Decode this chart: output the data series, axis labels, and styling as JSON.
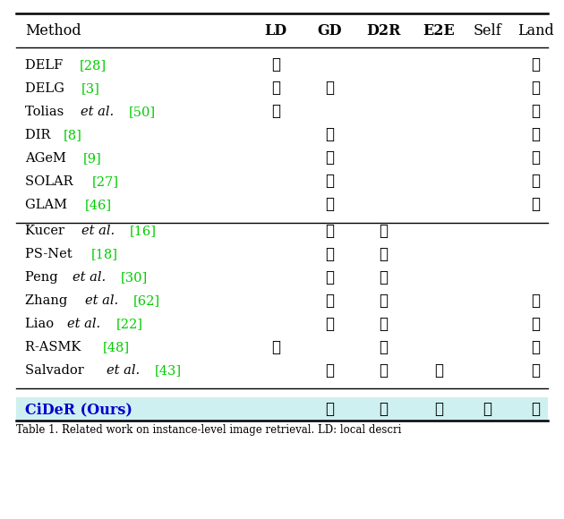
{
  "title": "Table 1. Related work on instance-level image retrieval. LD: local descri",
  "header_method": "Method",
  "columns": [
    "LD",
    "GD",
    "D2R",
    "E2E",
    "Self",
    "Land"
  ],
  "groups": [
    {
      "rows": [
        {
          "method": "DELF [28]",
          "checks": [
            1,
            0,
            0,
            0,
            0,
            1
          ]
        },
        {
          "method": "DELG [3]",
          "checks": [
            1,
            1,
            0,
            0,
            0,
            1
          ]
        },
        {
          "method": "Tolias et al. [50]",
          "checks": [
            1,
            0,
            0,
            0,
            0,
            1
          ]
        },
        {
          "method": "DIR [8]",
          "checks": [
            0,
            1,
            0,
            0,
            0,
            1
          ]
        },
        {
          "method": "AGeM [9]",
          "checks": [
            0,
            1,
            0,
            0,
            0,
            1
          ]
        },
        {
          "method": "SOLAR [27]",
          "checks": [
            0,
            1,
            0,
            0,
            0,
            1
          ]
        },
        {
          "method": "GLAM [46]",
          "checks": [
            0,
            1,
            0,
            0,
            0,
            1
          ]
        }
      ]
    },
    {
      "rows": [
        {
          "method": "Kucer et al. [16]",
          "checks": [
            0,
            1,
            1,
            0,
            0,
            0
          ]
        },
        {
          "method": "PS-Net [18]",
          "checks": [
            0,
            1,
            1,
            0,
            0,
            0
          ]
        },
        {
          "method": "Peng et al. [30]",
          "checks": [
            0,
            1,
            1,
            0,
            0,
            0
          ]
        },
        {
          "method": "Zhang et al. [62]",
          "checks": [
            0,
            1,
            1,
            0,
            0,
            1
          ]
        },
        {
          "method": "Liao et al. [22]",
          "checks": [
            0,
            1,
            1,
            0,
            0,
            1
          ]
        },
        {
          "method": "R-ASMK [48]",
          "checks": [
            1,
            0,
            1,
            0,
            0,
            1
          ]
        },
        {
          "method": "Salvador et al. [43]",
          "checks": [
            0,
            1,
            1,
            1,
            0,
            1
          ]
        }
      ]
    }
  ],
  "highlight_row": {
    "method": "CiDeR (Ours)",
    "checks": [
      0,
      1,
      1,
      1,
      1,
      1
    ],
    "bg_color": "#cff0f0"
  },
  "check_color": "#000000",
  "ref_color": "#00cc00",
  "highlight_method_color": "#0000cc",
  "font_size": 10.5,
  "header_font_size": 11.5,
  "caption_font_size": 8.5
}
